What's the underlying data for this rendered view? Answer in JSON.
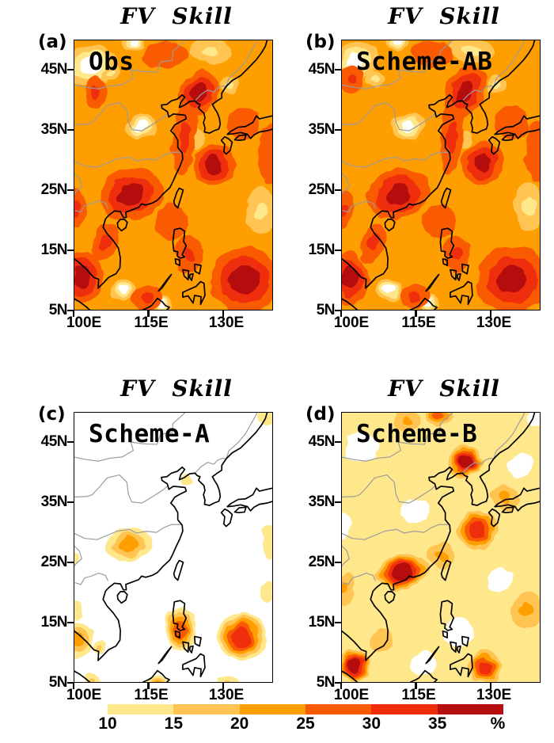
{
  "figure": {
    "panels": [
      {
        "panel_label": "(a)",
        "title": "FV  Skill",
        "dataset_label": "Obs"
      },
      {
        "panel_label": "(b)",
        "title": "FV  Skill",
        "dataset_label": "Scheme-AB"
      },
      {
        "panel_label": "(c)",
        "title": "FV  Skill",
        "dataset_label": "Scheme-A"
      },
      {
        "panel_label": "(d)",
        "title": "FV  Skill",
        "dataset_label": "Scheme-B"
      }
    ],
    "x_tick_labels": [
      "100E",
      "115E",
      "130E"
    ],
    "y_tick_labels": [
      "45N",
      "35N",
      "25N",
      "15N",
      "5N"
    ],
    "colorbar": {
      "tick_labels": [
        "10",
        "15",
        "20",
        "25",
        "30",
        "35"
      ],
      "unit_label": "%"
    }
  },
  "chart_data": {
    "type": "heatmap",
    "title": "FV Skill",
    "unit": "%",
    "contour_levels": [
      10,
      15,
      20,
      25,
      30,
      35
    ],
    "level_colors": [
      "#FFFFFF",
      "#FFE78C",
      "#FFC451",
      "#FF9E00",
      "#FA5A03",
      "#EF2D0B",
      "#B50F10"
    ],
    "map_extent": {
      "lon": [
        100,
        140
      ],
      "lat": [
        5,
        50
      ]
    },
    "x_ticks": [
      {
        "label": "100E",
        "lon": 100
      },
      {
        "label": "115E",
        "lon": 115
      },
      {
        "label": "130E",
        "lon": 130
      }
    ],
    "y_ticks": [
      {
        "label": "45N",
        "lat": 45
      },
      {
        "label": "35N",
        "lat": 35
      },
      {
        "label": "25N",
        "lat": 25
      },
      {
        "label": "15N",
        "lat": 15
      },
      {
        "label": "5N",
        "lat": 5
      }
    ],
    "feature_format": [
      "lon",
      "lat",
      "rx_deg",
      "ry_deg",
      "rotation_deg",
      "peak_level"
    ],
    "panels": [
      {
        "name": "Obs",
        "base_level": 3,
        "features": [
          [
            103.5,
            45.8,
            5.2,
            3.6,
            -20,
            0
          ],
          [
            107.6,
            44.4,
            1.6,
            1.2,
            0,
            1
          ],
          [
            113.4,
            35.6,
            3.2,
            2.0,
            -10,
            0
          ],
          [
            137.8,
            21.5,
            3.0,
            4.2,
            0,
            1
          ],
          [
            109.8,
            8.3,
            2.6,
            1.8,
            -15,
            0
          ],
          [
            117.8,
            6.0,
            2.0,
            1.5,
            0,
            0
          ],
          [
            112.0,
            49.6,
            2.4,
            1.5,
            0,
            0
          ],
          [
            127.5,
            48.2,
            4.2,
            2.2,
            8,
            1
          ],
          [
            131.4,
            42.7,
            1.9,
            1.5,
            0,
            1
          ],
          [
            124.2,
            33.6,
            2.2,
            1.7,
            0,
            2
          ],
          [
            111.5,
            24.3,
            6.5,
            4.3,
            -18,
            6
          ],
          [
            125.2,
            41.2,
            3.6,
            4.2,
            25,
            6
          ],
          [
            128.2,
            29.3,
            4.3,
            3.4,
            -30,
            6
          ],
          [
            134.5,
            10.0,
            7.0,
            5.6,
            0,
            6
          ],
          [
            101.5,
            10.5,
            4.3,
            4.4,
            0,
            6
          ],
          [
            123.2,
            14.2,
            2.8,
            3.2,
            0,
            5
          ],
          [
            122.3,
            34.0,
            2.3,
            6.5,
            6,
            5
          ],
          [
            104.3,
            41.4,
            2.3,
            2.7,
            0,
            5
          ],
          [
            100.2,
            22.0,
            2.1,
            3.1,
            0,
            5
          ],
          [
            118.5,
            47.6,
            4.6,
            2.2,
            0,
            4
          ],
          [
            134.2,
            36.2,
            3.4,
            2.7,
            0,
            4
          ],
          [
            106.3,
            16.3,
            2.3,
            3.4,
            20,
            5
          ],
          [
            114.8,
            7.0,
            3.0,
            2.0,
            0,
            5
          ],
          [
            119.6,
            19.6,
            3.4,
            3.0,
            0,
            4
          ],
          [
            139.6,
            31.0,
            2.6,
            5.0,
            0,
            4
          ]
        ]
      },
      {
        "name": "Scheme-AB",
        "base_level": 3,
        "features": [
          [
            103.0,
            46.6,
            4.4,
            3.0,
            -15,
            0
          ],
          [
            106.8,
            43.6,
            1.8,
            1.3,
            0,
            1
          ],
          [
            113.4,
            35.6,
            3.4,
            2.0,
            -10,
            0
          ],
          [
            137.8,
            22.2,
            3.0,
            4.2,
            0,
            1
          ],
          [
            109.8,
            8.3,
            2.6,
            1.8,
            -15,
            0
          ],
          [
            117.8,
            6.0,
            1.9,
            1.4,
            0,
            0
          ],
          [
            111.4,
            49.6,
            2.2,
            1.3,
            0,
            0
          ],
          [
            126.3,
            48.3,
            4.4,
            2.1,
            8,
            1
          ],
          [
            131.4,
            42.7,
            1.9,
            1.5,
            0,
            1
          ],
          [
            124.2,
            33.6,
            2.1,
            1.6,
            0,
            2
          ],
          [
            111.4,
            24.3,
            6.3,
            4.1,
            -18,
            6
          ],
          [
            124.9,
            41.5,
            3.8,
            4.4,
            25,
            6
          ],
          [
            128.4,
            29.5,
            4.4,
            3.5,
            -30,
            6
          ],
          [
            134.5,
            10.0,
            7.2,
            5.7,
            0,
            6
          ],
          [
            101.5,
            10.2,
            4.1,
            4.2,
            0,
            6
          ],
          [
            123.2,
            14.4,
            2.7,
            3.0,
            0,
            5
          ],
          [
            122.3,
            34.0,
            2.3,
            6.5,
            6,
            5
          ],
          [
            101.9,
            43.4,
            2.4,
            2.5,
            0,
            5
          ],
          [
            100.2,
            21.6,
            2.1,
            3.1,
            0,
            5
          ],
          [
            118.2,
            47.8,
            4.2,
            2.1,
            0,
            4
          ],
          [
            134.4,
            36.3,
            3.6,
            2.9,
            0,
            4
          ],
          [
            106.3,
            16.3,
            2.3,
            3.4,
            20,
            5
          ],
          [
            114.8,
            7.0,
            3.0,
            2.0,
            0,
            5
          ],
          [
            119.6,
            19.8,
            3.3,
            2.9,
            0,
            4
          ],
          [
            139.6,
            31.5,
            2.6,
            5.0,
            0,
            4
          ]
        ]
      },
      {
        "name": "Scheme-A",
        "base_level": 0,
        "features": [
          [
            111.0,
            28.0,
            4.6,
            2.7,
            -12,
            3
          ],
          [
            121.4,
            13.8,
            3.3,
            3.7,
            0,
            4
          ],
          [
            133.8,
            12.5,
            5.0,
            3.9,
            0,
            5
          ],
          [
            100.6,
            12.0,
            3.1,
            3.1,
            0,
            3
          ],
          [
            117.0,
            4.8,
            2.3,
            1.6,
            0,
            3
          ],
          [
            103.8,
            5.2,
            1.9,
            1.4,
            0,
            2
          ],
          [
            122.6,
            38.8,
            1.3,
            1.0,
            0,
            1
          ],
          [
            139.2,
            49.4,
            1.9,
            1.2,
            0,
            1
          ],
          [
            139.7,
            28.5,
            1.7,
            2.8,
            0,
            1
          ],
          [
            131.0,
            4.4,
            2.3,
            1.4,
            0,
            2
          ],
          [
            100.0,
            25.8,
            1.0,
            1.0,
            0,
            1
          ],
          [
            105.3,
            10.8,
            1.4,
            1.2,
            0,
            2
          ],
          [
            138.8,
            20.0,
            1.6,
            2.0,
            0,
            1
          ],
          [
            100.2,
            17.0,
            1.3,
            1.6,
            0,
            1
          ]
        ]
      },
      {
        "name": "Scheme-B",
        "base_level": 1,
        "features": [
          [
            104.0,
            44.2,
            3.4,
            2.5,
            0,
            0
          ],
          [
            114.6,
            33.6,
            2.9,
            2.1,
            0,
            0
          ],
          [
            123.6,
            13.4,
            2.9,
            2.5,
            0,
            0
          ],
          [
            116.6,
            8.0,
            2.9,
            1.9,
            0,
            0
          ],
          [
            136.2,
            41.2,
            2.5,
            2.1,
            0,
            0
          ],
          [
            100.3,
            31.0,
            1.7,
            2.3,
            0,
            0
          ],
          [
            139.2,
            49.2,
            2.1,
            1.3,
            0,
            0
          ],
          [
            131.8,
            22.0,
            2.3,
            2.0,
            0,
            0
          ],
          [
            112.3,
            23.4,
            5.3,
            2.9,
            -12,
            6
          ],
          [
            124.9,
            41.9,
            3.3,
            2.7,
            25,
            6
          ],
          [
            127.4,
            30.4,
            3.9,
            3.3,
            -35,
            5
          ],
          [
            102.4,
            7.8,
            3.1,
            2.7,
            0,
            6
          ],
          [
            128.9,
            7.4,
            3.1,
            2.7,
            0,
            5
          ],
          [
            137.3,
            17.0,
            3.4,
            3.0,
            0,
            3
          ],
          [
            112.9,
            48.7,
            2.7,
            1.9,
            0,
            3
          ],
          [
            119.6,
            49.4,
            2.5,
            1.7,
            0,
            4
          ],
          [
            133.1,
            35.9,
            2.9,
            2.1,
            0,
            3
          ],
          [
            120.1,
            26.1,
            2.7,
            2.1,
            -30,
            3
          ],
          [
            100.6,
            20.6,
            1.9,
            2.5,
            0,
            3
          ],
          [
            108.1,
            12.1,
            2.3,
            1.9,
            0,
            2
          ]
        ]
      }
    ]
  }
}
